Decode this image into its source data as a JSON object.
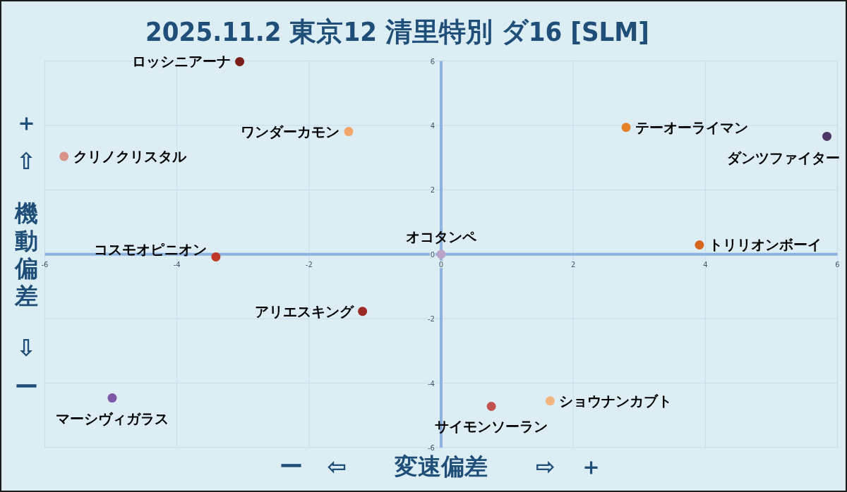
{
  "chart_data": {
    "type": "scatter",
    "title": "2025.11.2 東京12 清里特別 ダ16 [SLM]",
    "xlabel": "ー ⇦ 変速偏差 ⇨ ＋",
    "ylabel": "＋ ⇧ 機動偏差 ⇩ ー",
    "xlim": [
      -6,
      6
    ],
    "ylim": [
      -6,
      6
    ],
    "xticks": [
      -6,
      -4,
      -2,
      0,
      2,
      4,
      6
    ],
    "yticks": [
      -6,
      -4,
      -2,
      0,
      2,
      4,
      6
    ],
    "grid": true,
    "marker": "circle",
    "series": [
      {
        "name": "ロッシニアーナ",
        "color": "#7a1f1a",
        "x": [
          -3.05
        ],
        "values": [
          5.98
        ]
      },
      {
        "name": "ワンダーカモン",
        "color": "#f2a66a",
        "x": [
          -1.4
        ],
        "values": [
          3.81
        ]
      },
      {
        "name": "クリノクリスタル",
        "color": "#d99288",
        "x": [
          -5.71
        ],
        "values": [
          3.04
        ]
      },
      {
        "name": "テーオーライマン",
        "color": "#e6802a",
        "x": [
          2.8
        ],
        "values": [
          3.94
        ]
      },
      {
        "name": "ダンツファイター",
        "color": "#4e3766",
        "x": [
          5.84
        ],
        "values": [
          3.66
        ]
      },
      {
        "name": "オコタンペ",
        "color": "#b9a3c6",
        "x": [
          0
        ],
        "values": [
          0
        ]
      },
      {
        "name": "トリリオンボーイ",
        "color": "#d8651d",
        "x": [
          3.91
        ],
        "values": [
          0.29
        ]
      },
      {
        "name": "コスモオピニオン",
        "color": "#c0392b",
        "x": [
          -3.41
        ],
        "values": [
          -0.08
        ]
      },
      {
        "name": "アリエスキング",
        "color": "#9c2a24",
        "x": [
          -1.19
        ],
        "values": [
          -1.77
        ]
      },
      {
        "name": "マーシヴィガラス",
        "color": "#7d58a6",
        "x": [
          -4.98
        ],
        "values": [
          -4.46
        ]
      },
      {
        "name": "サイモンソーラン",
        "color": "#c2524e",
        "x": [
          0.76
        ],
        "values": [
          -4.72
        ]
      },
      {
        "name": "ショウナンカブト",
        "color": "#f0b47c",
        "x": [
          1.65
        ],
        "values": [
          -4.55
        ]
      }
    ]
  }
}
